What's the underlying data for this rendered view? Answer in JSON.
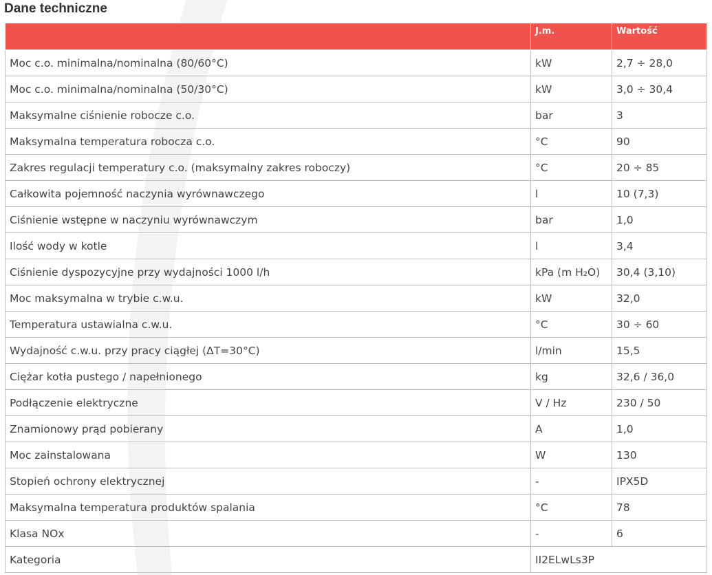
{
  "title": "Dane techniczne",
  "table": {
    "header": [
      "J.m.",
      "Wartość"
    ],
    "rows": [
      [
        "Moc c.o. minimalna/nominalna (80/60°C)",
        "kW",
        "2,7 ÷ 28,0"
      ],
      [
        "Moc c.o. minimalna/nominalna (50/30°C)",
        "kW",
        "3,0 ÷ 30,4"
      ],
      [
        "Maksymalne ciśnienie robocze c.o.",
        "bar",
        "3"
      ],
      [
        "Maksymalna temperatura robocza c.o.",
        "°C",
        "90"
      ],
      [
        "Zakres regulacji temperatury c.o. (maksymalny zakres roboczy)",
        "°C",
        "20 ÷ 85"
      ],
      [
        "Całkowita pojemność naczynia wyrównawczego",
        "l",
        "10 (7,3)"
      ],
      [
        "Ciśnienie wstępne w naczyniu wyrównawczym",
        "bar",
        "1,0"
      ],
      [
        "Ilość wody w kotle",
        "l",
        "3,4"
      ],
      [
        "Ciśnienie dyspozycyjne przy wydajności 1000 l/h",
        "kPa (m H₂O)",
        "30,4 (3,10)"
      ],
      [
        "Moc maksymalna w trybie c.w.u.",
        "kW",
        "32,0"
      ],
      [
        "Temperatura ustawialna c.w.u.",
        "°C",
        "30 ÷ 60"
      ],
      [
        "Wydajność c.w.u. przy pracy ciągłej (ΔT=30°C)",
        "l/min",
        "15,5"
      ],
      [
        "Ciężar kotła pustego / napełnionego",
        "kg",
        "32,6 / 36,0"
      ],
      [
        "Podłączenie elektryczne",
        "V / Hz",
        "230 / 50"
      ],
      [
        "Znamionowy prąd pobierany",
        "A",
        "1,0"
      ],
      [
        "Moc zainstalowana",
        "W",
        "130"
      ],
      [
        "Stopień ochrony elektrycznej",
        "-",
        "IPX5D"
      ],
      [
        "Maksymalna temperatura produktów spalania",
        "°C",
        "78"
      ],
      [
        "Klasa NOx",
        "-",
        "6"
      ],
      [
        "Kategoria",
        "II2ELwLs3P"
      ]
    ]
  }
}
